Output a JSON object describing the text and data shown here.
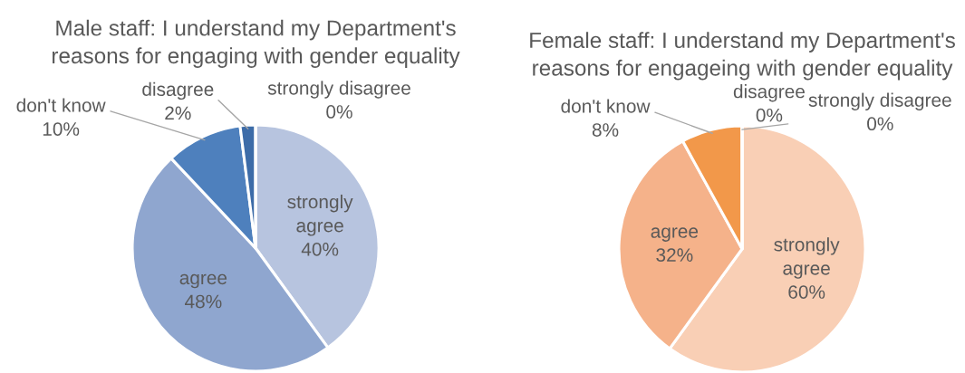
{
  "chart_data": [
    {
      "type": "pie",
      "title": "Male staff: I understand my Department's\nreasons for engaging with gender equality",
      "categories": [
        "strongly agree",
        "agree",
        "don't know",
        "disagree",
        "strongly disagree"
      ],
      "values": [
        40,
        48,
        10,
        2,
        0
      ],
      "value_labels": [
        "40%",
        "48%",
        "10%",
        "2%",
        "0%"
      ],
      "colors": [
        "#b7c4df",
        "#8fa6cf",
        "#4e80bd",
        "#3d6ca8",
        "#2e5690"
      ]
    },
    {
      "type": "pie",
      "title": "Female staff: I understand my Department's\nreasons for engageing with gender equality",
      "categories": [
        "strongly agree",
        "agree",
        "don't know",
        "disagree",
        "strongly disagree"
      ],
      "values": [
        60,
        32,
        8,
        0,
        0
      ],
      "value_labels": [
        "60%",
        "32%",
        "8%",
        "0%",
        "0%"
      ],
      "colors": [
        "#f9cfb5",
        "#f5b28a",
        "#f2984a",
        "#c86c2a",
        "#9c4f1a"
      ]
    }
  ]
}
